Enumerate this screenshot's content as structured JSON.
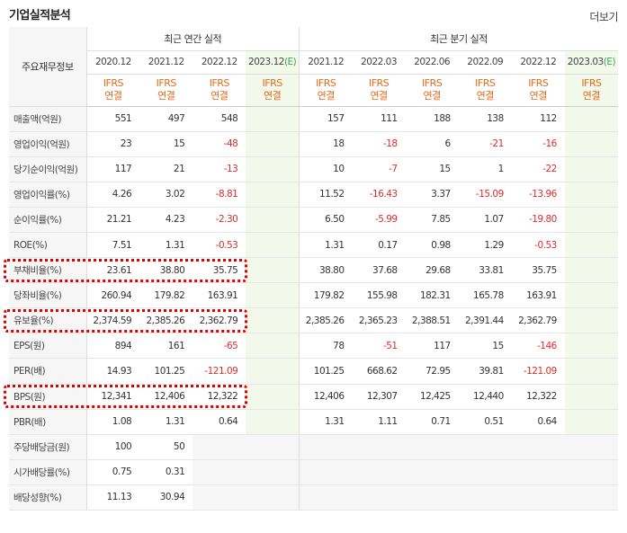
{
  "section_title": "기업실적분석",
  "more_link": "더보기",
  "header": {
    "row_label": "주요재무정보",
    "annual_group": "최근 연간 실적",
    "quarterly_group": "최근 분기 실적",
    "annual_periods": [
      "2020.12",
      "2021.12",
      "2022.12"
    ],
    "annual_estimate": {
      "period": "2023.12",
      "mark": "(E)"
    },
    "quarterly_periods": [
      "2021.12",
      "2022.03",
      "2022.06",
      "2022.09",
      "2022.12"
    ],
    "quarterly_estimate": {
      "period": "2023.03",
      "mark": "(E)"
    },
    "standard_top": "IFRS",
    "standard_bottom": "연결"
  },
  "rows": [
    {
      "label": "매출액(억원)",
      "annual": [
        "551",
        "497",
        "548"
      ],
      "quarterly": [
        "157",
        "111",
        "188",
        "138",
        "112"
      ]
    },
    {
      "label": "영업이익(억원)",
      "annual": [
        "23",
        "15",
        "-48"
      ],
      "quarterly": [
        "18",
        "-18",
        "6",
        "-21",
        "-16"
      ]
    },
    {
      "label": "당기순이익(억원)",
      "annual": [
        "117",
        "21",
        "-13"
      ],
      "quarterly": [
        "10",
        "-7",
        "15",
        "1",
        "-22"
      ]
    },
    {
      "label": "영업이익률(%)",
      "annual": [
        "4.26",
        "3.02",
        "-8.81"
      ],
      "quarterly": [
        "11.52",
        "-16.43",
        "3.37",
        "-15.09",
        "-13.96"
      ]
    },
    {
      "label": "순이익률(%)",
      "annual": [
        "21.21",
        "4.23",
        "-2.30"
      ],
      "quarterly": [
        "6.50",
        "-5.99",
        "7.85",
        "1.07",
        "-19.80"
      ]
    },
    {
      "label": "ROE(%)",
      "annual": [
        "7.51",
        "1.31",
        "-0.53"
      ],
      "quarterly": [
        "1.31",
        "0.17",
        "0.98",
        "1.29",
        "-0.53"
      ]
    },
    {
      "label": "부채비율(%)",
      "annual": [
        "23.61",
        "38.80",
        "35.75"
      ],
      "quarterly": [
        "38.80",
        "37.68",
        "29.68",
        "33.81",
        "35.75"
      ]
    },
    {
      "label": "당좌비율(%)",
      "annual": [
        "260.94",
        "179.82",
        "163.91"
      ],
      "quarterly": [
        "179.82",
        "155.98",
        "182.31",
        "165.78",
        "163.91"
      ]
    },
    {
      "label": "유보율(%)",
      "annual": [
        "2,374.59",
        "2,385.26",
        "2,362.79"
      ],
      "quarterly": [
        "2,385.26",
        "2,365.23",
        "2,388.51",
        "2,391.44",
        "2,362.79"
      ]
    },
    {
      "label": "EPS(원)",
      "annual": [
        "894",
        "161",
        "-65"
      ],
      "quarterly": [
        "78",
        "-51",
        "117",
        "15",
        "-146"
      ]
    },
    {
      "label": "PER(배)",
      "annual": [
        "14.93",
        "101.25",
        "-121.09"
      ],
      "quarterly": [
        "101.25",
        "668.62",
        "72.95",
        "39.81",
        "-121.09"
      ]
    },
    {
      "label": "BPS(원)",
      "annual": [
        "12,341",
        "12,406",
        "12,322"
      ],
      "quarterly": [
        "12,406",
        "12,307",
        "12,425",
        "12,440",
        "12,322"
      ]
    },
    {
      "label": "PBR(배)",
      "annual": [
        "1.08",
        "1.31",
        "0.64"
      ],
      "quarterly": [
        "1.31",
        "1.11",
        "0.71",
        "0.51",
        "0.64"
      ]
    },
    {
      "label": "주당배당금(원)",
      "annual": [
        "100",
        "50",
        ""
      ],
      "quarterly": [
        "",
        "",
        "",
        "",
        ""
      ]
    },
    {
      "label": "시가배당률(%)",
      "annual": [
        "0.75",
        "0.31",
        ""
      ],
      "quarterly": [
        "",
        "",
        "",
        "",
        ""
      ]
    },
    {
      "label": "배당성향(%)",
      "annual": [
        "11.13",
        "30.94",
        ""
      ],
      "quarterly": [
        "",
        "",
        "",
        "",
        ""
      ]
    }
  ],
  "highlighted_rows": [
    "부채비율(%)",
    "유보율(%)",
    "BPS(원)"
  ],
  "colors": {
    "negative": "#e02b2b",
    "ifrs": "#e26b1c",
    "estimate_mark": "#3aa657",
    "highlight": "#e00000",
    "estimate_bg": "#f2f8ea"
  }
}
